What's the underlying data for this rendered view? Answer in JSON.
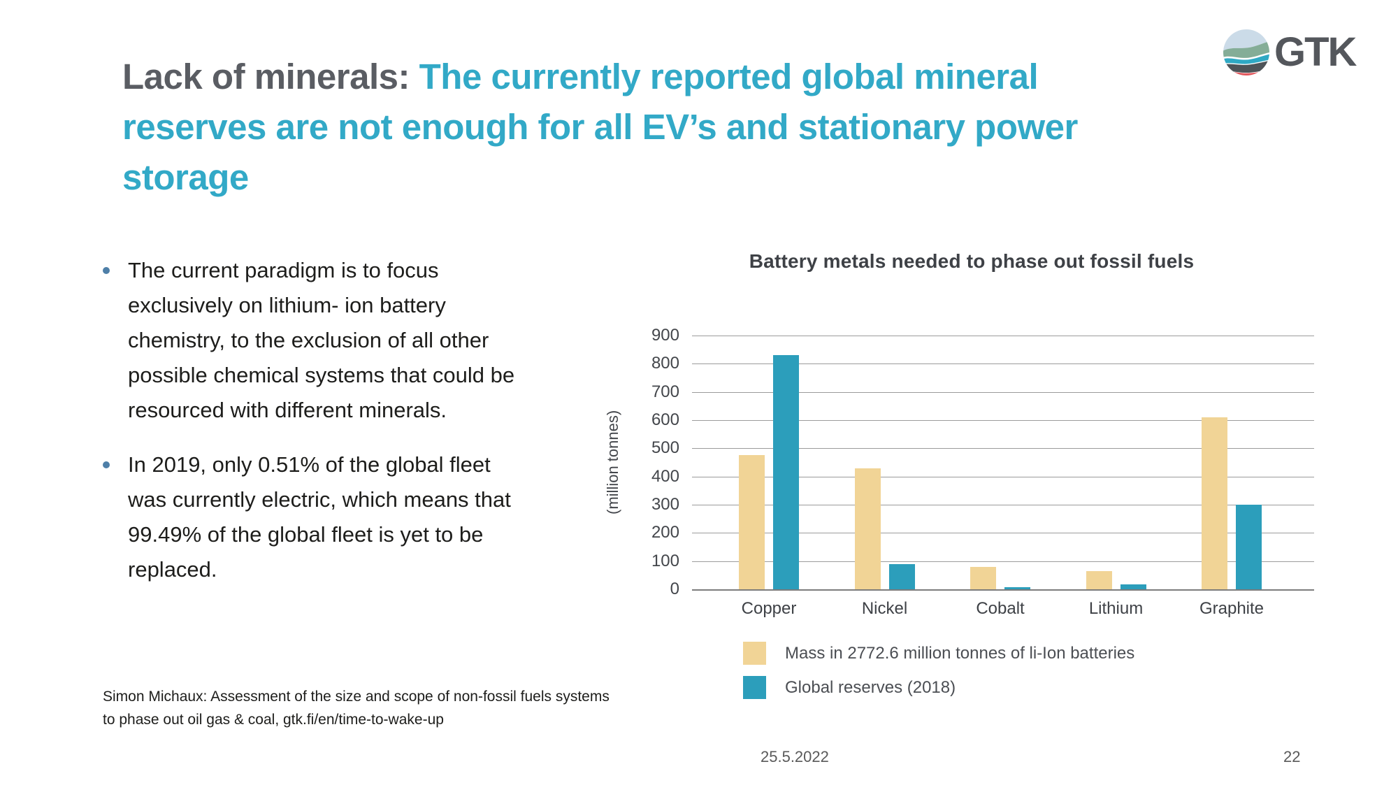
{
  "slide": {
    "title": {
      "plain": "Lack of minerals: ",
      "highlight": "The currently reported global mineral reserves are not enough for all EV’s and stationary power storage"
    },
    "bullets": [
      "The current paradigm is to focus exclusively on lithium- ion battery chemistry, to the exclusion of all other possible chemical systems that could be resourced with different minerals.",
      "In 2019, only 0.51% of the global fleet was currently electric, which means that 99.49% of the global fleet is yet to be replaced."
    ],
    "source_note": "Simon Michaux: Assessment of the size and scope of non-fossil fuels systems to phase out oil gas & coal, gtk.fi/en/time-to-wake-up",
    "footer": {
      "date": "25.5.2022",
      "page_number": "22"
    },
    "logo": {
      "text": "GTK"
    }
  },
  "colors": {
    "title_gray": "#5a5d63",
    "accent_teal": "#32a9c7",
    "bullet_dot": "#4e7fa8",
    "bar_tan": "#f1d496",
    "bar_teal": "#2c9ebb"
  },
  "chart_data": {
    "type": "bar",
    "title": "Battery metals needed to phase out fossil fuels",
    "xlabel": "",
    "ylabel": "(million tonnes)",
    "categories": [
      "Copper",
      "Nickel",
      "Cobalt",
      "Lithium",
      "Graphite"
    ],
    "series": [
      {
        "name": "Mass in 2772.6 million tonnes of li-Ion batteries",
        "color": "#f1d496",
        "values": [
          475,
          430,
          80,
          65,
          610
        ]
      },
      {
        "name": "Global reserves (2018)",
        "color": "#2c9ebb",
        "values": [
          830,
          90,
          7,
          17,
          300
        ]
      }
    ],
    "ylim": [
      0,
      900
    ],
    "ytick_step": 100,
    "grid": true,
    "legend_position": "bottom"
  }
}
